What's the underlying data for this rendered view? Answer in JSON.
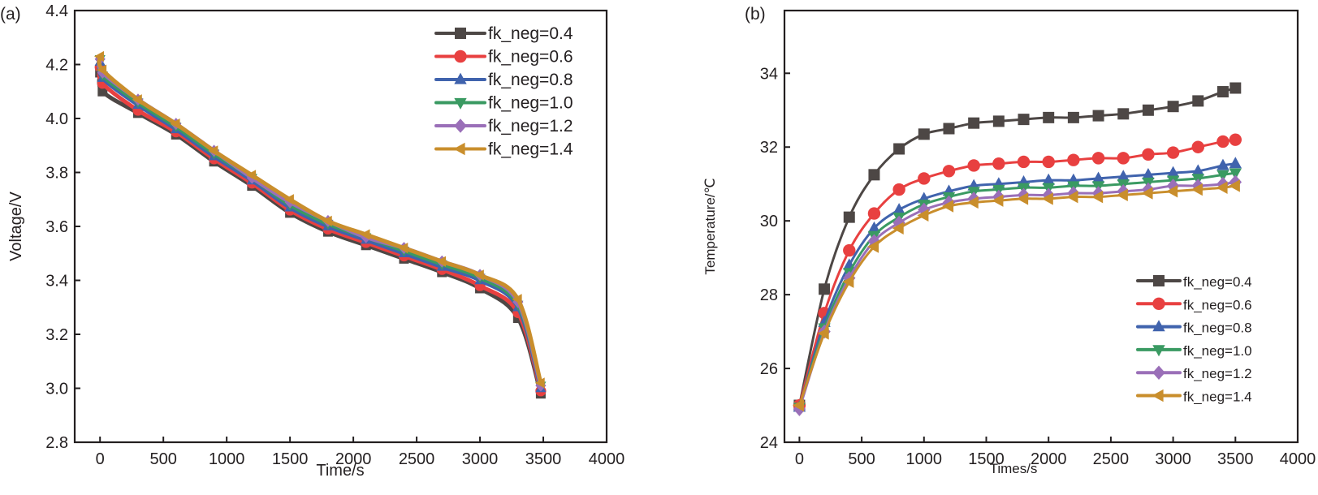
{
  "chart_data": [
    {
      "panel_label": "(a)",
      "type": "line",
      "title": "",
      "xlabel": "Time/s",
      "ylabel": "Voltage/V",
      "xlim": [
        -200,
        4000
      ],
      "ylim": [
        2.8,
        4.4
      ],
      "xticks": [
        0,
        500,
        1000,
        1500,
        2000,
        2500,
        3000,
        3500,
        4000
      ],
      "xtick_labels": [
        "0",
        "500",
        "1000",
        "1500",
        "2000",
        "2500",
        "3000",
        "3500",
        "4000"
      ],
      "yticks": [
        2.8,
        3.0,
        3.2,
        3.4,
        3.6,
        3.8,
        4.0,
        4.2,
        4.4
      ],
      "ytick_labels": [
        "2.8",
        "3.0",
        "3.2",
        "3.4",
        "3.6",
        "3.8",
        "4.0",
        "4.2",
        "4.4"
      ],
      "grid": false,
      "legend_position": "top-right",
      "x": [
        0,
        20,
        300,
        600,
        900,
        1200,
        1500,
        1800,
        2100,
        2400,
        2700,
        3000,
        3300,
        3480
      ],
      "series": [
        {
          "name": "fk_neg=0.4",
          "color": "#4d4745",
          "marker": "square",
          "values": [
            4.17,
            4.1,
            4.02,
            3.94,
            3.84,
            3.75,
            3.65,
            3.58,
            3.53,
            3.48,
            3.43,
            3.37,
            3.26,
            2.98
          ]
        },
        {
          "name": "fk_neg=0.6",
          "color": "#e84040",
          "marker": "circle",
          "values": [
            4.19,
            4.13,
            4.03,
            3.95,
            3.85,
            3.76,
            3.66,
            3.59,
            3.54,
            3.49,
            3.44,
            3.38,
            3.28,
            2.99
          ]
        },
        {
          "name": "fk_neg=0.8",
          "color": "#4063ad",
          "marker": "triangle-up",
          "values": [
            4.21,
            4.15,
            4.05,
            3.96,
            3.86,
            3.77,
            3.67,
            3.6,
            3.55,
            3.5,
            3.45,
            3.4,
            3.3,
            3.0
          ]
        },
        {
          "name": "fk_neg=1.0",
          "color": "#3a9a62",
          "marker": "triangle-down",
          "values": [
            4.22,
            4.16,
            4.06,
            3.97,
            3.87,
            3.78,
            3.68,
            3.61,
            3.56,
            3.51,
            3.46,
            3.41,
            3.31,
            3.01
          ]
        },
        {
          "name": "fk_neg=1.2",
          "color": "#9a6fb8",
          "marker": "diamond",
          "values": [
            4.22,
            4.17,
            4.07,
            3.98,
            3.88,
            3.78,
            3.69,
            3.62,
            3.56,
            3.52,
            3.47,
            3.42,
            3.32,
            3.01
          ]
        },
        {
          "name": "fk_neg=1.4",
          "color": "#c98e2c",
          "marker": "triangle-left",
          "values": [
            4.23,
            4.18,
            4.07,
            3.98,
            3.88,
            3.79,
            3.7,
            3.62,
            3.57,
            3.52,
            3.47,
            3.42,
            3.33,
            3.02
          ]
        }
      ]
    },
    {
      "panel_label": "(b)",
      "type": "line",
      "title": "",
      "xlabel": "Times/s",
      "ylabel": "Temperature/℃",
      "xlim": [
        -120,
        4000
      ],
      "ylim": [
        24,
        35.7
      ],
      "xticks": [
        0,
        500,
        1000,
        1500,
        2000,
        2500,
        3000,
        3500,
        4000
      ],
      "xtick_labels": [
        "0",
        "500",
        "1000",
        "1500",
        "2000",
        "2500",
        "3000",
        "3500",
        "4000"
      ],
      "yticks": [
        24,
        26,
        28,
        30,
        32,
        34
      ],
      "ytick_labels": [
        "24",
        "26",
        "28",
        "30",
        "32",
        "34"
      ],
      "grid": false,
      "legend_position": "bottom-right",
      "x": [
        0,
        200,
        400,
        600,
        800,
        1000,
        1200,
        1400,
        1600,
        1800,
        2000,
        2200,
        2400,
        2600,
        2800,
        3000,
        3200,
        3400,
        3500
      ],
      "series": [
        {
          "name": "fk_neg=0.4",
          "color": "#4d4745",
          "marker": "square",
          "values": [
            25.0,
            28.15,
            30.1,
            31.25,
            31.95,
            32.35,
            32.5,
            32.65,
            32.7,
            32.75,
            32.8,
            32.8,
            32.85,
            32.9,
            33.0,
            33.1,
            33.25,
            33.5,
            33.6
          ]
        },
        {
          "name": "fk_neg=0.6",
          "color": "#e84040",
          "marker": "circle",
          "values": [
            25.0,
            27.5,
            29.2,
            30.2,
            30.85,
            31.15,
            31.35,
            31.5,
            31.55,
            31.6,
            31.6,
            31.65,
            31.7,
            31.7,
            31.8,
            31.85,
            32.0,
            32.15,
            32.2
          ]
        },
        {
          "name": "fk_neg=0.8",
          "color": "#4063ad",
          "marker": "triangle-up",
          "values": [
            24.95,
            27.25,
            28.8,
            29.8,
            30.3,
            30.6,
            30.8,
            30.95,
            31.0,
            31.05,
            31.1,
            31.1,
            31.15,
            31.2,
            31.25,
            31.3,
            31.35,
            31.5,
            31.55
          ]
        },
        {
          "name": "fk_neg=1.0",
          "color": "#3a9a62",
          "marker": "triangle-down",
          "values": [
            24.95,
            27.1,
            28.6,
            29.6,
            30.1,
            30.45,
            30.65,
            30.8,
            30.85,
            30.9,
            30.9,
            30.95,
            30.95,
            31.0,
            31.05,
            31.1,
            31.15,
            31.25,
            31.3
          ]
        },
        {
          "name": "fk_neg=1.2",
          "color": "#9a6fb8",
          "marker": "diamond",
          "values": [
            24.9,
            27.0,
            28.45,
            29.45,
            29.95,
            30.3,
            30.5,
            30.6,
            30.65,
            30.7,
            30.7,
            30.75,
            30.75,
            30.8,
            30.85,
            30.95,
            30.95,
            31.0,
            31.05
          ]
        },
        {
          "name": "fk_neg=1.4",
          "color": "#c98e2c",
          "marker": "triangle-left",
          "values": [
            25.0,
            26.95,
            28.35,
            29.3,
            29.8,
            30.15,
            30.4,
            30.5,
            30.55,
            30.6,
            30.6,
            30.65,
            30.65,
            30.7,
            30.75,
            30.8,
            30.85,
            30.9,
            30.95
          ]
        }
      ]
    }
  ]
}
